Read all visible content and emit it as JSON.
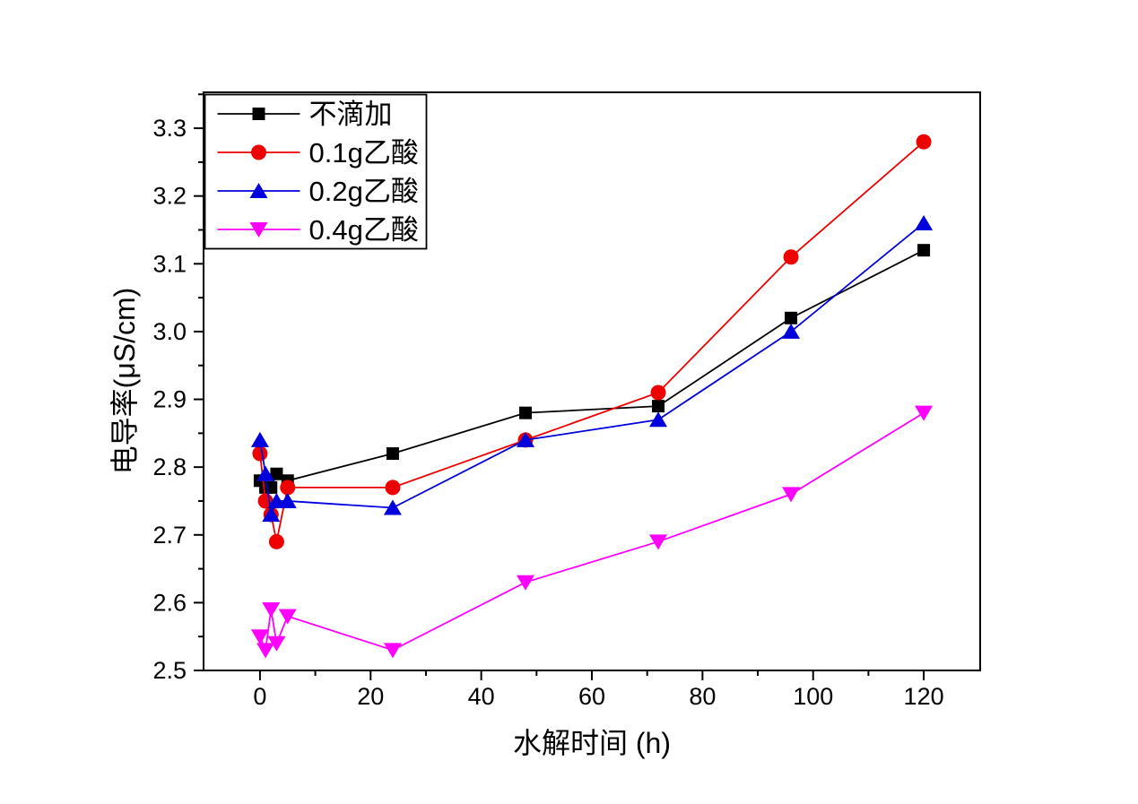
{
  "figure": {
    "background": "#ffffff",
    "frame_color": "#000000"
  },
  "chart_data": {
    "type": "line",
    "title": "",
    "xlabel": "水解时间 (h)",
    "ylabel": "电导率(μS/cm)",
    "xlim": [
      -10.2,
      130.2
    ],
    "ylim": [
      2.5,
      3.353
    ],
    "grid": false,
    "legend_position": "top-left",
    "x_ticks": [
      0,
      20,
      40,
      60,
      80,
      100,
      120
    ],
    "x_tick_labels": [
      "0",
      "20",
      "40",
      "60",
      "80",
      "100",
      "120"
    ],
    "x_minor_ticks": [
      10,
      30,
      50,
      70,
      90,
      110
    ],
    "y_ticks": [
      2.5,
      2.6,
      2.7,
      2.8,
      2.9,
      3.0,
      3.1,
      3.2,
      3.3
    ],
    "y_tick_labels": [
      "2.5",
      "2.6",
      "2.7",
      "2.8",
      "2.9",
      "3.0",
      "3.1",
      "3.2",
      "3.3"
    ],
    "y_minor_ticks": [
      2.55,
      2.65,
      2.75,
      2.85,
      2.95,
      3.05,
      3.15,
      3.25,
      3.35
    ],
    "x": [
      0,
      1,
      2,
      3,
      5,
      24,
      48,
      72,
      96,
      120
    ],
    "series": [
      {
        "name": "不滴加",
        "color": "#000000",
        "marker": "square",
        "values": [
          2.78,
          2.77,
          2.77,
          2.79,
          2.78,
          2.82,
          2.88,
          2.89,
          3.02,
          3.12
        ]
      },
      {
        "name": "0.1g乙酸",
        "color": "#ee0000",
        "marker": "circle",
        "values": [
          2.82,
          2.75,
          2.73,
          2.69,
          2.77,
          2.77,
          2.84,
          2.91,
          3.11,
          3.28
        ]
      },
      {
        "name": "0.2g乙酸",
        "color": "#0000dd",
        "marker": "triangle-up",
        "values": [
          2.84,
          2.79,
          2.73,
          2.75,
          2.75,
          2.74,
          2.84,
          2.87,
          3.0,
          3.16
        ]
      },
      {
        "name": "0.4g乙酸",
        "color": "#ff00ff",
        "marker": "triangle-down",
        "values": [
          2.55,
          2.53,
          2.59,
          2.54,
          2.58,
          2.53,
          2.63,
          2.69,
          2.76,
          2.88
        ]
      }
    ]
  }
}
